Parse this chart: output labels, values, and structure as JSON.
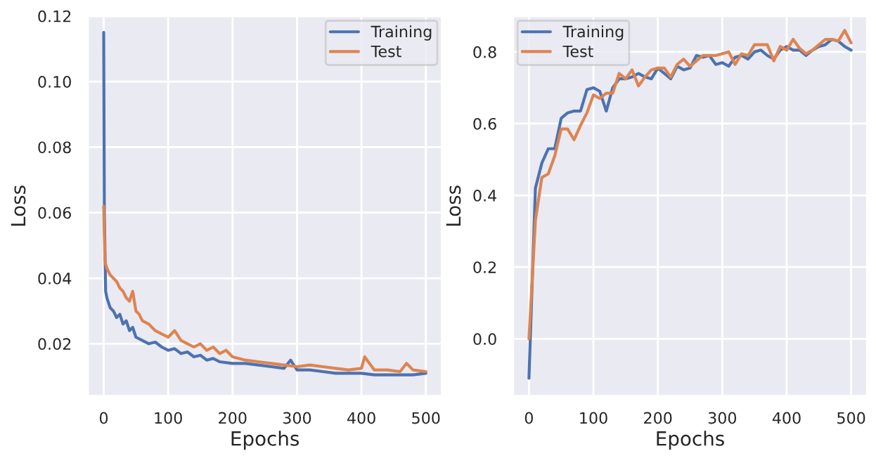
{
  "chart_data": [
    {
      "type": "line",
      "xlabel": "Epochs",
      "ylabel": "Loss",
      "legend": "top right",
      "grid": true,
      "xlim": [
        -25,
        525
      ],
      "ylim": [
        0.004,
        0.12
      ],
      "xticks": [
        0,
        100,
        200,
        300,
        400,
        500
      ],
      "yticks": [
        0.02,
        0.04,
        0.06,
        0.08,
        {
          "value": 0.1,
          "label": "0.10"
        },
        0.12
      ],
      "series": [
        {
          "name": "Training",
          "color": "#4c72b0",
          "x": [
            0,
            1,
            3,
            5,
            10,
            15,
            20,
            25,
            30,
            35,
            40,
            45,
            50,
            60,
            70,
            80,
            90,
            100,
            110,
            120,
            130,
            140,
            150,
            160,
            170,
            180,
            200,
            220,
            240,
            260,
            280,
            290,
            300,
            320,
            340,
            360,
            380,
            400,
            420,
            440,
            460,
            480,
            500
          ],
          "values": [
            0.115,
            0.06,
            0.036,
            0.034,
            0.031,
            0.03,
            0.028,
            0.029,
            0.026,
            0.027,
            0.024,
            0.025,
            0.022,
            0.021,
            0.02,
            0.0205,
            0.019,
            0.018,
            0.0185,
            0.017,
            0.0175,
            0.016,
            0.0165,
            0.015,
            0.0155,
            0.0145,
            0.014,
            0.014,
            0.0135,
            0.013,
            0.0125,
            0.015,
            0.012,
            0.012,
            0.0115,
            0.011,
            0.011,
            0.011,
            0.0105,
            0.0105,
            0.0105,
            0.0105,
            0.011
          ]
        },
        {
          "name": "Test",
          "color": "#dd8452",
          "x": [
            0,
            2,
            5,
            10,
            15,
            20,
            25,
            30,
            35,
            40,
            45,
            50,
            55,
            60,
            70,
            80,
            90,
            100,
            110,
            120,
            130,
            140,
            150,
            160,
            170,
            180,
            190,
            200,
            220,
            240,
            260,
            280,
            300,
            320,
            340,
            360,
            380,
            400,
            405,
            420,
            440,
            460,
            470,
            480,
            500
          ],
          "values": [
            0.062,
            0.045,
            0.043,
            0.041,
            0.04,
            0.039,
            0.037,
            0.036,
            0.034,
            0.033,
            0.036,
            0.03,
            0.029,
            0.027,
            0.026,
            0.024,
            0.023,
            0.022,
            0.024,
            0.021,
            0.02,
            0.019,
            0.02,
            0.018,
            0.019,
            0.017,
            0.018,
            0.016,
            0.015,
            0.0145,
            0.014,
            0.0135,
            0.013,
            0.0135,
            0.013,
            0.0125,
            0.012,
            0.0125,
            0.016,
            0.012,
            0.012,
            0.0115,
            0.014,
            0.012,
            0.0115
          ]
        }
      ]
    },
    {
      "type": "line",
      "xlabel": "Epochs",
      "ylabel": "Loss",
      "legend": "top left",
      "grid": true,
      "xlim": [
        -25,
        525
      ],
      "ylim": [
        -0.16,
        0.9
      ],
      "xticks": [
        0,
        100,
        200,
        300,
        400,
        500
      ],
      "yticks": [
        {
          "value": 0.0,
          "label": "0.0"
        },
        0.2,
        0.4,
        0.6,
        0.8
      ],
      "series": [
        {
          "name": "Training",
          "color": "#4c72b0",
          "x": [
            0,
            10,
            20,
            30,
            40,
            50,
            60,
            70,
            80,
            90,
            100,
            110,
            120,
            130,
            140,
            150,
            160,
            170,
            180,
            190,
            200,
            210,
            220,
            230,
            240,
            250,
            260,
            270,
            280,
            290,
            300,
            310,
            320,
            330,
            340,
            350,
            360,
            370,
            380,
            390,
            400,
            410,
            420,
            430,
            440,
            450,
            460,
            470,
            480,
            490,
            500
          ],
          "values": [
            -0.11,
            0.42,
            0.49,
            0.53,
            0.53,
            0.615,
            0.63,
            0.635,
            0.635,
            0.695,
            0.7,
            0.69,
            0.635,
            0.7,
            0.725,
            0.725,
            0.73,
            0.74,
            0.73,
            0.725,
            0.755,
            0.74,
            0.725,
            0.76,
            0.75,
            0.755,
            0.79,
            0.785,
            0.79,
            0.765,
            0.77,
            0.76,
            0.785,
            0.79,
            0.78,
            0.8,
            0.805,
            0.79,
            0.78,
            0.805,
            0.815,
            0.805,
            0.805,
            0.79,
            0.805,
            0.815,
            0.82,
            0.835,
            0.83,
            0.815,
            0.805
          ]
        },
        {
          "name": "Test",
          "color": "#dd8452",
          "x": [
            0,
            10,
            20,
            30,
            40,
            50,
            60,
            70,
            80,
            90,
            100,
            110,
            120,
            130,
            140,
            150,
            160,
            170,
            180,
            190,
            200,
            210,
            220,
            230,
            240,
            250,
            260,
            270,
            280,
            290,
            300,
            310,
            320,
            330,
            340,
            350,
            360,
            370,
            380,
            390,
            400,
            410,
            420,
            430,
            440,
            450,
            460,
            470,
            480,
            490,
            500
          ],
          "values": [
            0.0,
            0.33,
            0.45,
            0.46,
            0.51,
            0.585,
            0.585,
            0.555,
            0.595,
            0.63,
            0.68,
            0.67,
            0.685,
            0.685,
            0.74,
            0.725,
            0.75,
            0.705,
            0.73,
            0.75,
            0.755,
            0.755,
            0.73,
            0.765,
            0.78,
            0.76,
            0.775,
            0.79,
            0.79,
            0.79,
            0.795,
            0.8,
            0.765,
            0.795,
            0.79,
            0.82,
            0.82,
            0.82,
            0.775,
            0.815,
            0.805,
            0.835,
            0.81,
            0.795,
            0.805,
            0.82,
            0.835,
            0.835,
            0.83,
            0.86,
            0.825
          ]
        }
      ]
    }
  ]
}
